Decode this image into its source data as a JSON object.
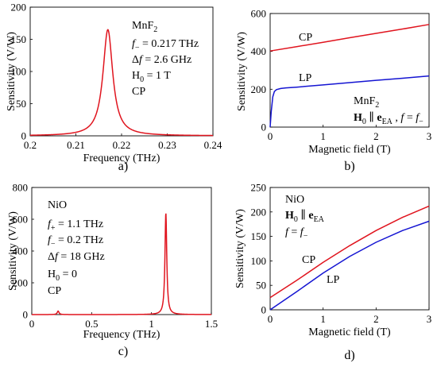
{
  "colors": {
    "red": "#e0141e",
    "blue": "#1414d2",
    "axis": "#000000"
  },
  "chart_data": [
    {
      "id": "a",
      "type": "line",
      "panel_label": "a)",
      "xlabel": "Frequency (THz)",
      "ylabel": "Sensitivity (V/W)",
      "xlim": [
        0.2,
        0.24
      ],
      "ylim": [
        0,
        200
      ],
      "xticks": [
        0.2,
        0.21,
        0.22,
        0.23,
        0.24
      ],
      "xtick_labels": [
        "0.2",
        "0.21",
        "0.22",
        "0.23",
        "0.24"
      ],
      "yticks": [
        0,
        50,
        100,
        150,
        200
      ],
      "ytick_labels": [
        "0",
        "50",
        "100",
        "150",
        "200"
      ],
      "grid": false,
      "annotations": [
        "MnF2",
        "f− = 0.217 THz",
        "Δf = 2.6 GHz",
        "H0 = 1 T",
        "CP"
      ],
      "series": [
        {
          "color": "#e0141e",
          "resonance": {
            "f0": 0.217,
            "fwhm": 0.0026,
            "peak": 165
          }
        }
      ]
    },
    {
      "id": "b",
      "type": "line",
      "panel_label": "b)",
      "xlabel": "Magnetic field (T)",
      "ylabel": "Sensitivity (V/W)",
      "xlim": [
        0,
        3
      ],
      "ylim": [
        0,
        600
      ],
      "xticks": [
        0,
        1,
        2,
        3
      ],
      "xtick_labels": [
        "0",
        "1",
        "2",
        "3"
      ],
      "yticks": [
        0,
        200,
        400,
        600
      ],
      "ytick_labels": [
        "0",
        "200",
        "400",
        "600"
      ],
      "grid": false,
      "annotations": [
        "MnF2",
        "H0 ∥ eEA , f = f−"
      ],
      "series": [
        {
          "name": "CP",
          "color": "#e0141e",
          "x": [
            0,
            0.5,
            1,
            1.5,
            2,
            2.5,
            3
          ],
          "y": [
            402,
            425,
            448,
            472,
            495,
            518,
            542
          ]
        },
        {
          "name": "LP",
          "color": "#1414d2",
          "x": [
            0,
            0.02,
            0.05,
            0.08,
            0.12,
            0.2,
            0.3,
            0.5,
            1,
            1.5,
            2,
            2.5,
            3
          ],
          "y": [
            0,
            80,
            160,
            188,
            198,
            204,
            207,
            211,
            223,
            235,
            247,
            258,
            270
          ]
        }
      ]
    },
    {
      "id": "c",
      "type": "line",
      "panel_label": "c)",
      "xlabel": "Frequency (THz)",
      "ylabel": "Sensitivity (V/W)",
      "xlim": [
        0,
        1.5
      ],
      "ylim": [
        0,
        800
      ],
      "xticks": [
        0,
        0.5,
        1,
        1.5
      ],
      "xtick_labels": [
        "0",
        "0.5",
        "1",
        "1.5"
      ],
      "yticks": [
        0,
        200,
        400,
        600,
        800
      ],
      "ytick_labels": [
        "0",
        "200",
        "400",
        "600",
        "800"
      ],
      "grid": false,
      "annotations": [
        "NiO",
        "f+ = 1.1 THz",
        "f− = 0.2 THz",
        "Δf = 18 GHz",
        "H0 = 0",
        "CP"
      ],
      "series": [
        {
          "color": "#e0141e",
          "resonances": [
            {
              "f0": 0.22,
              "fwhm": 0.018,
              "peak": 22
            },
            {
              "f0": 1.12,
              "fwhm": 0.018,
              "peak": 640
            }
          ]
        }
      ]
    },
    {
      "id": "d",
      "type": "line",
      "panel_label": "d)",
      "xlabel": "Magnetic field (T)",
      "ylabel": "Sensitivity (V/W)",
      "xlim": [
        0,
        3
      ],
      "ylim": [
        0,
        250
      ],
      "xticks": [
        0,
        1,
        2,
        3
      ],
      "xtick_labels": [
        "0",
        "1",
        "2",
        "3"
      ],
      "yticks": [
        0,
        50,
        100,
        150,
        200,
        250
      ],
      "ytick_labels": [
        "0",
        "50",
        "100",
        "150",
        "200",
        "250"
      ],
      "grid": false,
      "annotations": [
        "NiO",
        "H0 ∥ eEA",
        "f = f−"
      ],
      "series": [
        {
          "name": "CP",
          "color": "#e0141e",
          "x": [
            0,
            0.5,
            1,
            1.5,
            2,
            2.5,
            3
          ],
          "y": [
            25,
            60,
            97,
            131,
            162,
            189,
            212
          ]
        },
        {
          "name": "LP",
          "color": "#1414d2",
          "x": [
            0,
            0.5,
            1,
            1.5,
            2,
            2.5,
            3
          ],
          "y": [
            0,
            37,
            75,
            109,
            138,
            162,
            181
          ]
        }
      ]
    }
  ]
}
